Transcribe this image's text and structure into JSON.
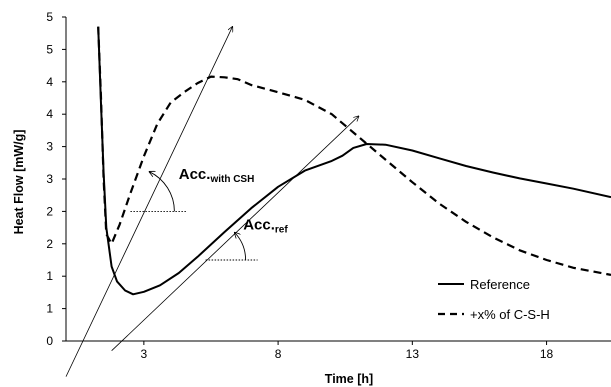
{
  "chart_data": {
    "type": "line",
    "xlabel": "Time [h]",
    "ylabel": "Heat Flow [mW/g]",
    "xlim": [
      0.1,
      20.4
    ],
    "ylim": [
      0,
      5
    ],
    "x_ticks": [
      3,
      8,
      13,
      18
    ],
    "y_tick_labels": [
      "0",
      "1",
      "1",
      "2",
      "2",
      "3",
      "3",
      "4",
      "4",
      "5",
      "5"
    ],
    "legend_position": "bottom-right",
    "series": [
      {
        "name": "Reference",
        "style": "solid",
        "points": [
          [
            1.3,
            4.85
          ],
          [
            1.4,
            3.7
          ],
          [
            1.5,
            2.6
          ],
          [
            1.6,
            1.75
          ],
          [
            1.8,
            1.15
          ],
          [
            2.0,
            0.92
          ],
          [
            2.3,
            0.78
          ],
          [
            2.6,
            0.72
          ],
          [
            3.0,
            0.76
          ],
          [
            3.6,
            0.86
          ],
          [
            4.3,
            1.05
          ],
          [
            5.0,
            1.3
          ],
          [
            6.0,
            1.68
          ],
          [
            7.0,
            2.05
          ],
          [
            8.0,
            2.38
          ],
          [
            9.0,
            2.63
          ],
          [
            10.0,
            2.78
          ],
          [
            10.4,
            2.86
          ],
          [
            10.8,
            2.98
          ],
          [
            11.3,
            3.04
          ],
          [
            12.0,
            3.03
          ],
          [
            13.0,
            2.94
          ],
          [
            14.0,
            2.82
          ],
          [
            15.0,
            2.7
          ],
          [
            16.0,
            2.6
          ],
          [
            17.0,
            2.51
          ],
          [
            18.0,
            2.43
          ],
          [
            19.0,
            2.35
          ],
          [
            20.4,
            2.22
          ]
        ]
      },
      {
        "name": "+x% of C-S-H",
        "style": "dashed",
        "points": [
          [
            1.3,
            4.85
          ],
          [
            1.4,
            3.8
          ],
          [
            1.5,
            2.5
          ],
          [
            1.6,
            1.65
          ],
          [
            1.8,
            1.5
          ],
          [
            2.1,
            1.8
          ],
          [
            2.5,
            2.28
          ],
          [
            3.0,
            2.85
          ],
          [
            3.5,
            3.35
          ],
          [
            4.0,
            3.68
          ],
          [
            4.5,
            3.84
          ],
          [
            5.0,
            3.98
          ],
          [
            5.5,
            4.08
          ],
          [
            6.0,
            4.07
          ],
          [
            6.5,
            4.04
          ],
          [
            7.0,
            3.95
          ],
          [
            8.0,
            3.84
          ],
          [
            9.0,
            3.72
          ],
          [
            10.0,
            3.5
          ],
          [
            11.0,
            3.15
          ],
          [
            12.0,
            2.8
          ],
          [
            13.0,
            2.45
          ],
          [
            14.0,
            2.12
          ],
          [
            15.0,
            1.84
          ],
          [
            16.0,
            1.6
          ],
          [
            17.0,
            1.4
          ],
          [
            18.0,
            1.25
          ],
          [
            19.0,
            1.13
          ],
          [
            20.4,
            1.02
          ]
        ]
      }
    ],
    "tangents": [
      {
        "from": [
          0.1,
          -0.55
        ],
        "to": [
          6.3,
          4.85
        ]
      },
      {
        "from": [
          1.8,
          -0.15
        ],
        "to": [
          11.0,
          3.47
        ]
      }
    ],
    "annotations": [
      {
        "main": "Acc.",
        "sub": "with CSH",
        "arc_center": [
          2.5,
          2.0
        ],
        "anchor": [
          4.3,
          2.5
        ]
      },
      {
        "main": "Acc.",
        "sub": "ref",
        "arc_center": [
          5.3,
          1.25
        ],
        "anchor": [
          6.7,
          1.72
        ]
      }
    ]
  }
}
